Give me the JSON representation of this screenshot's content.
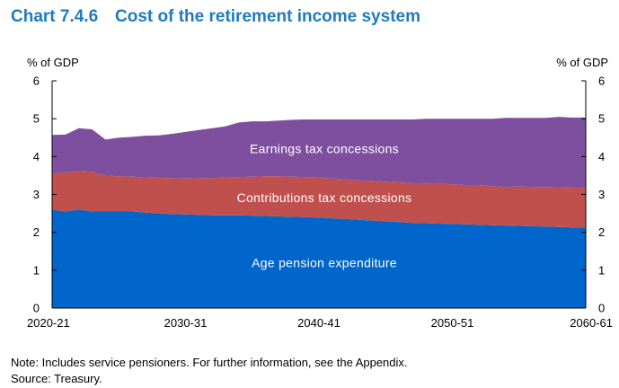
{
  "header": {
    "chart_number": "Chart 7.4.6",
    "title": "Cost of the retirement income system"
  },
  "footnotes": {
    "note": "Note: Includes service pensioners. For further information, see the Appendix.",
    "source": "Source: Treasury."
  },
  "chart_data": {
    "type": "area",
    "stacked": true,
    "title": "Cost of the retirement income system",
    "ylabel_left": "% of GDP",
    "ylabel_right": "% of GDP",
    "ylim": [
      0,
      6
    ],
    "yticks": [
      0,
      1,
      2,
      3,
      4,
      5,
      6
    ],
    "x": [
      2021,
      2022,
      2023,
      2024,
      2025,
      2026,
      2027,
      2028,
      2029,
      2030,
      2031,
      2032,
      2033,
      2034,
      2035,
      2036,
      2037,
      2038,
      2039,
      2040,
      2041,
      2042,
      2043,
      2044,
      2045,
      2046,
      2047,
      2048,
      2049,
      2050,
      2051,
      2052,
      2053,
      2054,
      2055,
      2056,
      2057,
      2058,
      2059,
      2060,
      2061
    ],
    "xtick_labels": [
      {
        "x": 2021,
        "label": "2020-21"
      },
      {
        "x": 2031,
        "label": "2030-31"
      },
      {
        "x": 2041,
        "label": "2040-41"
      },
      {
        "x": 2051,
        "label": "2050-51"
      },
      {
        "x": 2061,
        "label": "2060-61"
      }
    ],
    "series": [
      {
        "name": "Age pension expenditure",
        "color": "#0066cc",
        "values": [
          2.6,
          2.55,
          2.6,
          2.55,
          2.55,
          2.55,
          2.55,
          2.52,
          2.5,
          2.48,
          2.47,
          2.46,
          2.45,
          2.45,
          2.45,
          2.44,
          2.43,
          2.42,
          2.41,
          2.4,
          2.39,
          2.37,
          2.35,
          2.33,
          2.31,
          2.29,
          2.27,
          2.25,
          2.24,
          2.23,
          2.22,
          2.21,
          2.2,
          2.19,
          2.18,
          2.17,
          2.16,
          2.15,
          2.14,
          2.13,
          2.12
        ]
      },
      {
        "name": "Contributions tax concessions",
        "color": "#c0504d",
        "values": [
          0.95,
          1.03,
          1.02,
          1.05,
          0.95,
          0.93,
          0.92,
          0.93,
          0.94,
          0.95,
          0.95,
          0.97,
          0.98,
          1.0,
          1.01,
          1.03,
          1.05,
          1.06,
          1.06,
          1.06,
          1.06,
          1.05,
          1.05,
          1.04,
          1.05,
          1.05,
          1.05,
          1.05,
          1.05,
          1.05,
          1.05,
          1.04,
          1.05,
          1.03,
          1.02,
          1.04,
          1.04,
          1.05,
          1.05,
          1.05,
          1.05
        ]
      },
      {
        "name": "Earnings tax concessions",
        "color": "#7f4f9f",
        "values": [
          1.02,
          1.0,
          1.13,
          1.12,
          0.95,
          1.02,
          1.05,
          1.1,
          1.12,
          1.17,
          1.23,
          1.27,
          1.32,
          1.35,
          1.44,
          1.46,
          1.45,
          1.47,
          1.5,
          1.52,
          1.53,
          1.56,
          1.58,
          1.61,
          1.62,
          1.64,
          1.66,
          1.68,
          1.71,
          1.72,
          1.73,
          1.75,
          1.75,
          1.78,
          1.82,
          1.81,
          1.82,
          1.82,
          1.86,
          1.85,
          1.86
        ]
      }
    ],
    "legend": "inline labels"
  }
}
